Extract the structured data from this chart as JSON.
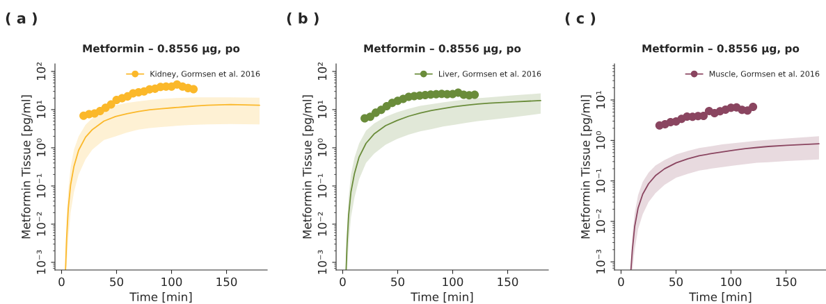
{
  "chart_data": [
    {
      "type": "line",
      "title": "Metformin – 0.8556 µg, po",
      "xlabel": "Time [min]",
      "ylabel": "Metformin Tissue [pg/ml]",
      "annotations": [
        "( a )"
      ],
      "log": "y",
      "legend": "top right",
      "xlim": [
        -6,
        187
      ],
      "xticks": [
        0,
        50,
        100,
        150
      ],
      "ylim": [
        0.00063,
        158
      ],
      "yticks": [
        {
          "value": 0.001,
          "label": "10⁻³"
        },
        {
          "value": 0.01,
          "label": "10⁻²"
        },
        {
          "value": 0.1,
          "label": "10⁻¹"
        },
        {
          "value": 1,
          "label": "10⁰"
        },
        {
          "value": 10,
          "label": "10¹"
        },
        {
          "value": 100,
          "label": "10²"
        }
      ],
      "series": [
        {
          "type": "scatter",
          "name": "Kidney, Gormsen et al. 2016",
          "color": "#fbb82a",
          "marker": "circle",
          "x": [
            20,
            25,
            30,
            35,
            40,
            45,
            50,
            55,
            60,
            65,
            70,
            75,
            80,
            85,
            90,
            95,
            100,
            105,
            110,
            115,
            120
          ],
          "values": [
            6.9,
            7.6,
            7.9,
            9.2,
            11.2,
            13.6,
            18,
            19.9,
            22.2,
            26.6,
            28.5,
            29.8,
            33.8,
            35.2,
            39.4,
            40,
            40,
            45.3,
            40,
            36.7,
            34.3
          ]
        },
        {
          "type": "line",
          "color": "#fbb82a",
          "marker": "none",
          "x": [
            3.6,
            4.6,
            6.1,
            8.2,
            11.3,
            15.5,
            21.8,
            28,
            38.5,
            49,
            59.4,
            69.9,
            80.3,
            90.8,
            101.3,
            111.7,
            122.2,
            132.6,
            153.6,
            180
          ],
          "values": [
            0.00065,
            0.0042,
            0.026,
            0.106,
            0.33,
            0.86,
            1.9,
            3.0,
            5.0,
            6.6,
            7.8,
            8.9,
            9.9,
            10.6,
            11.2,
            11.8,
            12.5,
            13.0,
            13.6,
            13.0
          ],
          "lower": [
            0.00065,
            0.0008,
            0.004,
            0.02,
            0.07,
            0.2,
            0.5,
            0.9,
            1.6,
            2.0,
            2.5,
            3.0,
            3.3,
            3.5,
            3.7,
            3.9,
            4.0,
            4.1,
            4.2,
            4.1
          ],
          "upper": [
            0.002,
            0.015,
            0.08,
            0.3,
            0.9,
            2.0,
            4.0,
            6.0,
            9.0,
            13,
            15,
            16.5,
            18,
            19,
            20,
            20.5,
            21,
            21,
            21,
            20.5
          ]
        }
      ]
    },
    {
      "type": "line",
      "title": "Metformin – 0.8556 µg, po",
      "xlabel": "Time [min]",
      "ylabel": "Metformin Tissue [pg/ml]",
      "annotations": [
        "( b )"
      ],
      "log": "y",
      "legend": "top right",
      "xlim": [
        -6,
        187
      ],
      "xticks": [
        0,
        50,
        100,
        150
      ],
      "ylim": [
        0.00063,
        158
      ],
      "yticks": [
        {
          "value": 0.001,
          "label": "10⁻³"
        },
        {
          "value": 0.01,
          "label": "10⁻²"
        },
        {
          "value": 0.1,
          "label": "10⁻¹"
        },
        {
          "value": 1,
          "label": "10⁰"
        },
        {
          "value": 10,
          "label": "10¹"
        },
        {
          "value": 100,
          "label": "10²"
        }
      ],
      "series": [
        {
          "type": "scatter",
          "name": "Liver, Gormsen et al. 2016",
          "color": "#6a8c3a",
          "marker": "circle",
          "x": [
            20,
            25,
            30,
            35,
            40,
            45,
            50,
            55,
            60,
            65,
            70,
            75,
            80,
            85,
            90,
            95,
            100,
            105,
            110,
            115,
            120
          ],
          "values": [
            5.9,
            6.5,
            8.3,
            9.9,
            12.3,
            15.0,
            17.0,
            19.0,
            21.6,
            22.5,
            23.2,
            24.1,
            24.8,
            25.2,
            25.9,
            25.2,
            25.5,
            27.7,
            24.5,
            23.8,
            24.5
          ]
        },
        {
          "type": "line",
          "color": "#6a8c3a",
          "marker": "none",
          "x": [
            3.1,
            4.0,
            5.4,
            7.5,
            10.7,
            14.9,
            21.2,
            28.5,
            39.0,
            49.4,
            59.9,
            70.4,
            80.9,
            91.3,
            101.8,
            112.3,
            122.8,
            133.2,
            154.2,
            180
          ],
          "values": [
            0.00065,
            0.0032,
            0.0172,
            0.07,
            0.213,
            0.57,
            1.31,
            2.3,
            3.8,
            5.2,
            6.7,
            8.1,
            9.5,
            10.7,
            12.0,
            13.0,
            14.0,
            14.8,
            15.9,
            17.3
          ],
          "lower": [
            0.00065,
            0.00065,
            0.003,
            0.015,
            0.05,
            0.15,
            0.4,
            0.7,
            1.2,
            1.7,
            2.2,
            2.7,
            3.1,
            3.6,
            4.0,
            4.5,
            5.0,
            5.4,
            6.3,
            7.8
          ],
          "upper": [
            0.0015,
            0.01,
            0.05,
            0.2,
            0.55,
            1.3,
            2.8,
            4.3,
            6.5,
            8.5,
            10.5,
            12.5,
            14,
            15.5,
            17,
            18.5,
            20,
            21,
            23.5,
            26.6
          ]
        }
      ]
    },
    {
      "type": "line",
      "title": "Metformin – 0.8556 µg, po",
      "xlabel": "Time [min]",
      "ylabel": "Metformin Tissue [pg/ml]",
      "annotations": [
        "( c )"
      ],
      "log": "y",
      "legend": "top right",
      "xlim": [
        -6,
        187
      ],
      "xticks": [
        0,
        50,
        100,
        150
      ],
      "ylim": [
        0.00063,
        78
      ],
      "yticks": [
        {
          "value": 0.001,
          "label": "10⁻³"
        },
        {
          "value": 0.01,
          "label": "10⁻²"
        },
        {
          "value": 0.1,
          "label": "10⁻¹"
        },
        {
          "value": 1,
          "label": "10⁰"
        },
        {
          "value": 10,
          "label": "10¹"
        }
      ],
      "series": [
        {
          "type": "scatter",
          "name": "Muscle, Gormsen et al. 2016",
          "color": "#8a4560",
          "marker": "circle",
          "x": [
            35,
            40,
            45,
            50,
            55,
            60,
            65,
            70,
            75,
            80,
            85,
            90,
            95,
            100,
            105,
            110,
            115,
            120
          ],
          "values": [
            2.35,
            2.51,
            2.83,
            2.94,
            3.4,
            3.88,
            3.83,
            3.98,
            4.04,
            5.3,
            4.72,
            5.25,
            5.75,
            6.4,
            6.57,
            5.68,
            5.46,
            6.74
          ]
        },
        {
          "type": "line",
          "color": "#8a4560",
          "marker": "none",
          "x": [
            9.0,
            10.3,
            12.4,
            15.5,
            19.7,
            25.0,
            31.3,
            39.6,
            50.1,
            60.6,
            71.1,
            81.6,
            92.1,
            102.6,
            113.1,
            123.6,
            134.0,
            150.8,
            180
          ],
          "values": [
            0.00065,
            0.002,
            0.0075,
            0.0214,
            0.047,
            0.085,
            0.135,
            0.2,
            0.28,
            0.35,
            0.42,
            0.47,
            0.52,
            0.575,
            0.63,
            0.67,
            0.71,
            0.76,
            0.83
          ],
          "lower": [
            0.00065,
            0.00065,
            0.002,
            0.0065,
            0.015,
            0.03,
            0.05,
            0.08,
            0.12,
            0.15,
            0.18,
            0.2,
            0.22,
            0.24,
            0.26,
            0.28,
            0.29,
            0.31,
            0.34
          ],
          "upper": [
            0.0012,
            0.0045,
            0.016,
            0.045,
            0.095,
            0.16,
            0.24,
            0.33,
            0.45,
            0.55,
            0.65,
            0.72,
            0.8,
            0.86,
            0.92,
            0.98,
            1.03,
            1.12,
            1.27
          ]
        }
      ]
    }
  ]
}
